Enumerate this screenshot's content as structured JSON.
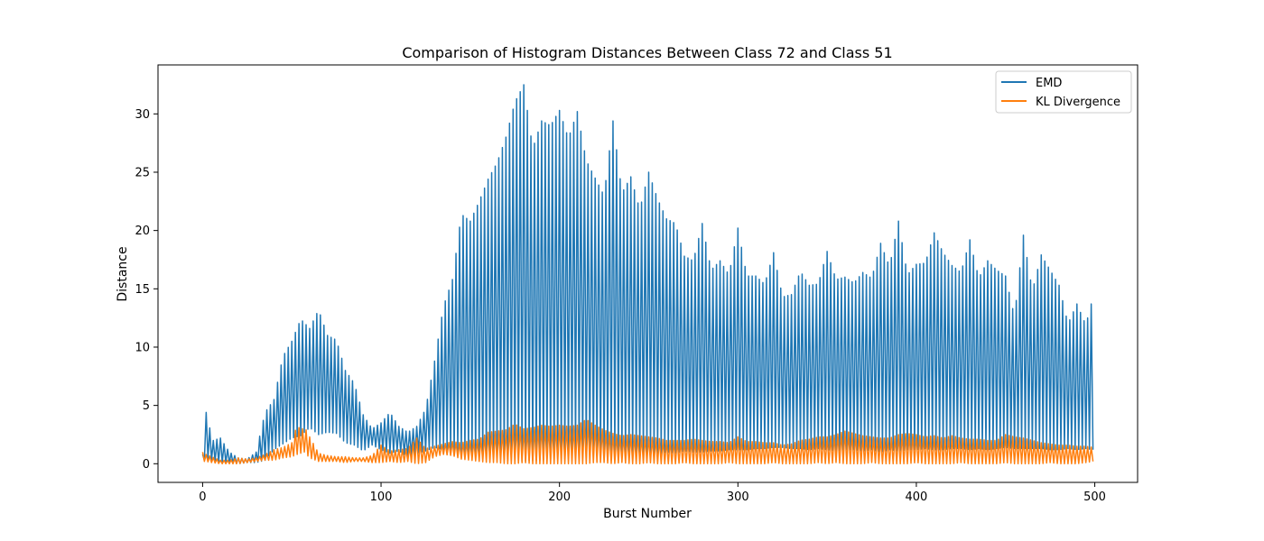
{
  "chart_data": {
    "type": "line",
    "title": "Comparison of Histogram Distances Between Class 72 and Class 51",
    "xlabel": "Burst Number",
    "ylabel": "Distance",
    "xlim": [
      -25,
      524
    ],
    "ylim": [
      -1.6,
      34.2
    ],
    "xticks": [
      0,
      100,
      200,
      300,
      400,
      500
    ],
    "yticks": [
      0,
      5,
      10,
      15,
      20,
      25,
      30
    ],
    "grid": false,
    "legend": "top-right",
    "series": [
      {
        "name": "EMD",
        "color": "#1f77b4",
        "envelope": {
          "x": [
            0,
            1,
            3,
            6,
            10,
            15,
            20,
            25,
            30,
            35,
            40,
            45,
            50,
            55,
            60,
            65,
            70,
            75,
            80,
            85,
            90,
            95,
            100,
            105,
            110,
            115,
            120,
            125,
            130,
            135,
            140,
            145,
            150,
            155,
            160,
            165,
            170,
            175,
            180,
            185,
            190,
            195,
            200,
            205,
            210,
            215,
            220,
            225,
            230,
            235,
            240,
            245,
            250,
            255,
            260,
            265,
            270,
            275,
            280,
            285,
            290,
            295,
            300,
            305,
            310,
            315,
            320,
            325,
            330,
            335,
            340,
            345,
            350,
            355,
            360,
            365,
            370,
            375,
            380,
            385,
            390,
            395,
            400,
            405,
            410,
            415,
            420,
            425,
            430,
            435,
            440,
            445,
            450,
            455,
            460,
            465,
            470,
            475,
            480,
            485,
            490,
            495,
            499
          ],
          "high": [
            0.8,
            5.2,
            3.6,
            2.0,
            2.2,
            1.0,
            0.5,
            0.4,
            1.0,
            4.4,
            5.5,
            9.2,
            10.5,
            12.4,
            11.6,
            13.2,
            11.0,
            10.6,
            8.0,
            6.9,
            4.2,
            3.0,
            3.5,
            4.4,
            3.2,
            2.7,
            3.2,
            4.7,
            8.8,
            13.5,
            15.8,
            21.4,
            20.8,
            22.5,
            24.4,
            25.8,
            28.0,
            31.0,
            32.5,
            27.0,
            29.4,
            29.0,
            30.3,
            27.9,
            30.2,
            26.0,
            24.5,
            23.0,
            29.4,
            23.2,
            24.6,
            21.8,
            25.0,
            22.7,
            21.0,
            20.6,
            17.8,
            17.4,
            20.6,
            16.6,
            17.4,
            16.2,
            20.2,
            16.1,
            16.1,
            15.4,
            18.1,
            14.3,
            14.5,
            16.5,
            15.3,
            15.4,
            18.2,
            15.8,
            16.0,
            15.5,
            16.4,
            15.9,
            18.9,
            16.9,
            20.8,
            16.2,
            17.1,
            17.2,
            19.8,
            18.1,
            17.0,
            16.4,
            19.2,
            15.9,
            17.4,
            16.6,
            16.1,
            12.6,
            19.6,
            14.8,
            17.9,
            16.6,
            15.3,
            12.0,
            13.7,
            11.9,
            14.3
          ],
          "low": [
            0.1,
            0.3,
            0.4,
            0.2,
            0.1,
            0.1,
            0.0,
            0.1,
            0.1,
            0.3,
            1.2,
            1.7,
            2.2,
            2.4,
            3.1,
            2.5,
            2.7,
            2.6,
            1.8,
            1.6,
            1.1,
            1.6,
            1.2,
            0.9,
            1.1,
            0.6,
            0.9,
            1.1,
            1.4,
            1.2,
            1.0,
            0.9,
            0.7,
            0.6,
            0.5,
            0.6,
            0.3,
            0.2,
            0.2,
            0.3,
            0.3,
            0.4,
            0.5,
            0.4,
            0.6,
            0.5,
            0.7,
            0.6,
            0.7,
            0.7,
            0.7,
            0.8,
            0.9,
            0.8,
            1.0,
            0.9,
            1.1,
            1.0,
            1.0,
            1.1,
            1.1,
            1.2,
            1.2,
            1.2,
            1.3,
            1.3,
            1.4,
            1.4,
            1.3,
            1.3,
            1.2,
            1.3,
            1.2,
            1.1,
            1.2,
            1.2,
            1.1,
            1.2,
            1.0,
            1.2,
            1.1,
            1.2,
            1.2,
            1.3,
            1.2,
            1.2,
            1.3,
            1.3,
            1.2,
            1.3,
            1.2,
            1.3,
            1.4,
            1.3,
            1.3,
            1.3,
            1.3,
            1.2,
            1.2,
            1.3,
            1.2,
            1.3,
            1.2
          ]
        }
      },
      {
        "name": "KL Divergence",
        "color": "#ff7f0e",
        "envelope": {
          "x": [
            0,
            2,
            5,
            10,
            15,
            20,
            25,
            30,
            35,
            40,
            45,
            50,
            53,
            55,
            57,
            60,
            65,
            70,
            75,
            80,
            85,
            90,
            95,
            100,
            105,
            110,
            115,
            120,
            125,
            130,
            135,
            140,
            145,
            150,
            155,
            160,
            165,
            170,
            175,
            180,
            185,
            190,
            195,
            200,
            205,
            210,
            215,
            220,
            225,
            230,
            235,
            240,
            245,
            250,
            255,
            260,
            265,
            270,
            275,
            280,
            285,
            290,
            295,
            300,
            305,
            310,
            315,
            320,
            325,
            330,
            335,
            340,
            345,
            350,
            355,
            360,
            365,
            370,
            375,
            380,
            385,
            390,
            395,
            400,
            405,
            410,
            415,
            420,
            425,
            430,
            435,
            440,
            445,
            450,
            455,
            460,
            465,
            470,
            475,
            480,
            485,
            490,
            495,
            499
          ],
          "high": [
            1.0,
            0.8,
            0.6,
            0.3,
            0.3,
            0.5,
            0.4,
            0.5,
            0.8,
            1.2,
            1.4,
            1.8,
            3.4,
            2.8,
            3.2,
            2.3,
            0.9,
            0.7,
            0.6,
            0.6,
            0.5,
            0.5,
            0.7,
            1.6,
            1.1,
            1.2,
            1.3,
            2.2,
            1.3,
            1.5,
            1.7,
            1.9,
            1.8,
            2.0,
            2.1,
            2.7,
            2.8,
            2.9,
            3.4,
            3.0,
            3.1,
            3.3,
            3.2,
            3.3,
            3.2,
            3.3,
            3.8,
            3.3,
            2.9,
            2.6,
            2.4,
            2.5,
            2.4,
            2.3,
            2.2,
            2.0,
            2.0,
            2.0,
            2.1,
            2.0,
            1.9,
            1.9,
            1.8,
            2.3,
            1.9,
            1.9,
            1.8,
            1.8,
            1.6,
            1.7,
            2.0,
            2.1,
            2.3,
            2.3,
            2.5,
            2.8,
            2.6,
            2.4,
            2.3,
            2.2,
            2.2,
            2.5,
            2.6,
            2.5,
            2.3,
            2.4,
            2.2,
            2.4,
            2.2,
            2.1,
            2.1,
            2.0,
            2.0,
            2.5,
            2.3,
            2.2,
            2.0,
            1.8,
            1.7,
            1.6,
            1.6,
            1.5,
            1.5,
            1.4
          ],
          "low": [
            0.2,
            0.2,
            0.1,
            0.0,
            0.0,
            0.0,
            0.1,
            0.2,
            0.3,
            0.3,
            0.5,
            0.6,
            0.8,
            0.9,
            1.0,
            0.5,
            0.2,
            0.2,
            0.2,
            0.1,
            0.2,
            0.2,
            0.1,
            0.1,
            0.2,
            0.1,
            0.2,
            0.0,
            0.1,
            0.6,
            0.8,
            0.7,
            0.4,
            0.3,
            0.2,
            0.1,
            0.1,
            0.0,
            0.0,
            0.1,
            0.0,
            0.0,
            0.0,
            0.0,
            0.0,
            0.0,
            0.0,
            0.1,
            0.1,
            0.0,
            0.1,
            0.0,
            0.0,
            0.1,
            0.0,
            0.0,
            0.0,
            0.1,
            0.0,
            0.0,
            0.0,
            0.0,
            0.1,
            0.0,
            0.0,
            0.0,
            0.0,
            0.1,
            0.0,
            0.0,
            0.0,
            0.0,
            0.1,
            0.0,
            0.1,
            0.0,
            0.0,
            0.0,
            0.1,
            0.0,
            0.0,
            0.0,
            0.0,
            0.1,
            0.0,
            0.0,
            0.0,
            0.0,
            0.1,
            0.0,
            0.0,
            0.0,
            0.0,
            0.1,
            0.0,
            0.0,
            0.0,
            0.0,
            0.1,
            0.0,
            0.0,
            0.0,
            0.1,
            0.2
          ]
        }
      }
    ]
  }
}
